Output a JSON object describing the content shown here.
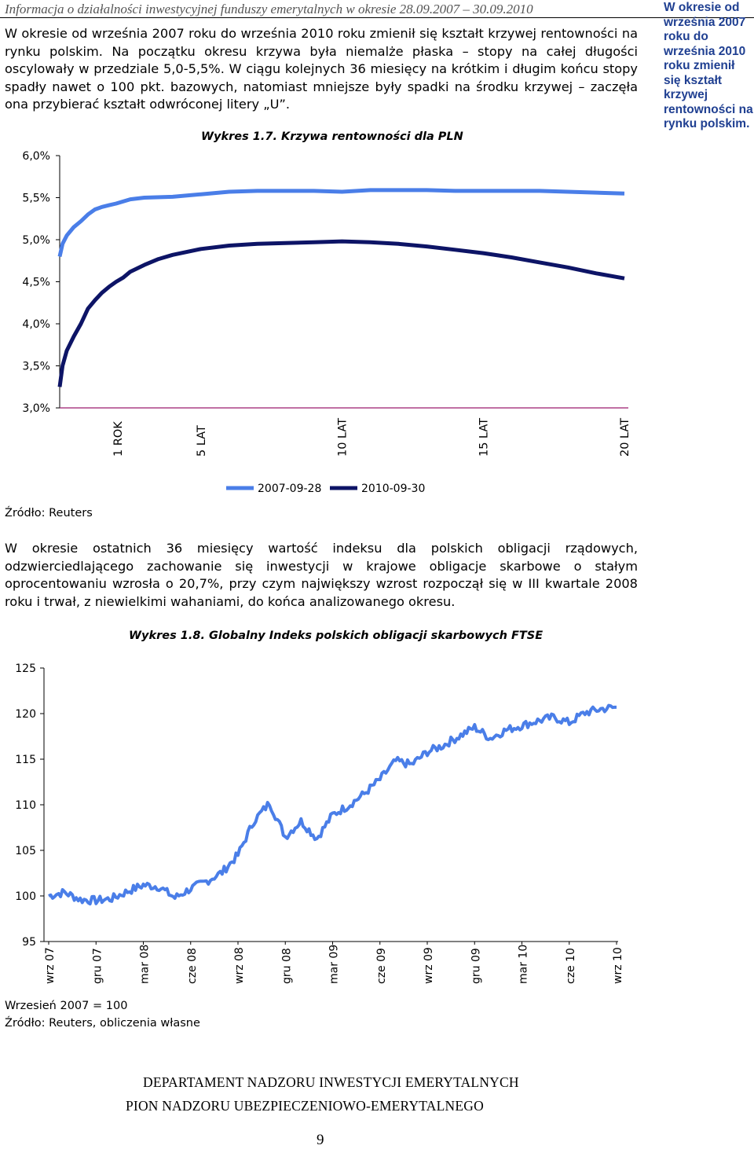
{
  "header": {
    "running_title": "Informacja o działalności inwestycyjnej funduszy emerytalnych w okresie 28.09.2007 – 30.09.2010"
  },
  "intro_paragraph": "W okresie od września 2007 roku do września 2010 roku zmienił się kształt krzywej rentowności na rynku polskim. Na początku okresu krzywa była niemalże płaska – stopy na całej długości oscylowały w przedziale 5,0-5,5%. W ciągu kolejnych 36 miesięcy na krótkim i długim końcu stopy spadły nawet o 100 pkt. bazowych, natomiast mniejsze były spadki na środku krzywej – zaczęła ona przybierać kształt odwróconej litery „U”.",
  "sidebar_note": "W okresie od września 2007 roku do września 2010 roku zmienił się kształt krzywej rentowności na rynku polskim.",
  "chart1": {
    "caption": "Wykres 1.7. Krzywa rentowności dla PLN",
    "source": "Źródło: Reuters"
  },
  "paragraph2": "W okresie ostatnich 36 miesięcy wartość indeksu dla polskich obligacji rządowych, odzwierciedlającego zachowanie się inwestycji w krajowe obligacje skarbowe o stałym oprocentowaniu wzrosła o 20,7%, przy czym największy wzrost rozpoczął się w III kwartale 2008 roku i trwał, z niewielkimi wahaniami, do końca analizowanego okresu.",
  "chart2": {
    "caption": "Wykres 1.8. Globalny Indeks polskich obligacji skarbowych FTSE",
    "note": "Wrzesień 2007 = 100",
    "source": "Źródło: Reuters, obliczenia własne"
  },
  "footer": {
    "department": "DEPARTAMENT NADZORU INWESTYCJI EMERYTALNYCH",
    "division": "PION NADZORU UBEZPIECZENIOWO-EMERYTALNEGO",
    "page_number": "9"
  },
  "colors": {
    "series_2007": "#4a7ee8",
    "series_2010": "#0d1466",
    "sidebar_text": "#1f3f91"
  },
  "chart_data": [
    {
      "type": "line",
      "title": "Wykres 1.7. Krzywa rentowności dla PLN",
      "xlabel": "",
      "ylabel": "",
      "x_range_years": [
        0,
        20
      ],
      "x_tick_years": [
        1,
        5,
        10,
        15,
        20
      ],
      "x_tick_labels": [
        "1 ROK",
        "5 LAT",
        "10 LAT",
        "15 LAT",
        "20 LAT"
      ],
      "ylim": [
        3.0,
        6.0
      ],
      "y_ticks": [
        3.0,
        3.5,
        4.0,
        4.5,
        5.0,
        5.5,
        6.0
      ],
      "y_tick_labels": [
        "3,0%",
        "3,5%",
        "4,0%",
        "4,5%",
        "5,0%",
        "5,5%",
        "6,0%"
      ],
      "grid": false,
      "legend_position": "below",
      "series": [
        {
          "name": "2007-09-28",
          "color": "#4a7ee8",
          "x": [
            0,
            0.1,
            0.25,
            0.5,
            0.75,
            1,
            1.25,
            1.5,
            1.75,
            2,
            2.5,
            3,
            4,
            5,
            6,
            7,
            8,
            9,
            10,
            11,
            12,
            13,
            14,
            15,
            16,
            17,
            18,
            19,
            20
          ],
          "y": [
            4.8,
            4.95,
            5.05,
            5.15,
            5.22,
            5.3,
            5.36,
            5.39,
            5.41,
            5.43,
            5.48,
            5.5,
            5.51,
            5.54,
            5.57,
            5.58,
            5.58,
            5.58,
            5.57,
            5.59,
            5.59,
            5.59,
            5.58,
            5.58,
            5.58,
            5.58,
            5.57,
            5.56,
            5.55
          ]
        },
        {
          "name": "2010-09-30",
          "color": "#0d1466",
          "x": [
            0,
            0.1,
            0.25,
            0.5,
            0.75,
            1,
            1.25,
            1.5,
            1.75,
            2,
            2.25,
            2.5,
            3,
            3.5,
            4,
            5,
            6,
            7,
            8,
            9,
            10,
            11,
            12,
            13,
            14,
            15,
            16,
            17,
            18,
            19,
            20
          ],
          "y": [
            3.25,
            3.5,
            3.68,
            3.85,
            4.0,
            4.18,
            4.28,
            4.37,
            4.44,
            4.5,
            4.55,
            4.62,
            4.7,
            4.77,
            4.82,
            4.89,
            4.93,
            4.95,
            4.96,
            4.97,
            4.98,
            4.97,
            4.95,
            4.92,
            4.88,
            4.84,
            4.79,
            4.73,
            4.67,
            4.6,
            4.54
          ]
        }
      ]
    },
    {
      "type": "line",
      "title": "Wykres 1.8. Globalny Indeks polskich obligacji skarbowych FTSE",
      "xlabel": "",
      "ylabel": "",
      "ylim": [
        95,
        125
      ],
      "y_ticks": [
        95,
        100,
        105,
        110,
        115,
        120,
        125
      ],
      "x_tick_labels": [
        "wrz 07",
        "gru 07",
        "mar 08",
        "cze 08",
        "wrz 08",
        "gru 08",
        "mar 09",
        "cze 09",
        "wrz 09",
        "gru 09",
        "mar 10",
        "cze 10",
        "wrz 10"
      ],
      "months_from_sep_2007": [
        0,
        1,
        2,
        3,
        4,
        5,
        6,
        7,
        8,
        9,
        10,
        11,
        12,
        13,
        14,
        15,
        16,
        17,
        18,
        19,
        20,
        21,
        22,
        23,
        24,
        25,
        26,
        27,
        28,
        29,
        30,
        31,
        32,
        33,
        34,
        35,
        36
      ],
      "grid": false,
      "series": [
        {
          "name": "",
          "color": "#4a7ee8",
          "values": [
            100,
            100.4,
            99.6,
            99.5,
            99.7,
            100.5,
            101.2,
            101,
            99.8,
            100.8,
            101.6,
            102.6,
            104.5,
            108.2,
            110.2,
            106.5,
            108.2,
            106.3,
            108.9,
            109.9,
            111.2,
            112.8,
            114.8,
            114.4,
            115.8,
            116.5,
            117.5,
            118.5,
            117.3,
            118.2,
            118.7,
            119.2,
            119.6,
            119.0,
            120.1,
            120.5,
            120.7
          ]
        }
      ]
    }
  ]
}
